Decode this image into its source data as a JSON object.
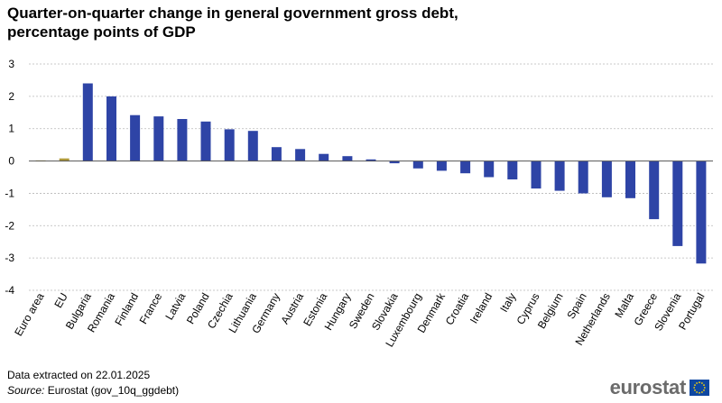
{
  "title": {
    "line1": "Quarter-on-quarter change in general government gross debt,",
    "line2": "percentage points of GDP"
  },
  "footer": {
    "extracted": "Data extracted  on 22.01.2025",
    "source_label": "Source:",
    "source_text": " Eurostat (gov_10q_ggdebt)"
  },
  "logo": {
    "text": "eurostat",
    "icon": "eu-flag-icon"
  },
  "colors": {
    "aggregate": "#b09a3b",
    "country": "#2e44a6",
    "grid": "#b8b8b8",
    "axis": "#555555"
  },
  "chart_data": {
    "type": "bar",
    "title": "Quarter-on-quarter change in general government gross debt, percentage points of GDP",
    "xlabel": "",
    "ylabel": "",
    "ylim": [
      -4,
      3
    ],
    "yticks": [
      3,
      2,
      1,
      0,
      -1,
      -2,
      -3,
      -4
    ],
    "grid": true,
    "categories": [
      "Euro area",
      "EU",
      "Bulgaria",
      "Romania",
      "Finland",
      "France",
      "Latvia",
      "Poland",
      "Czechia",
      "Lithuania",
      "Germany",
      "Austria",
      "Estonia",
      "Hungary",
      "Sweden",
      "Slovakia",
      "Luxembourg",
      "Denmark",
      "Croatia",
      "Ireland",
      "Italy",
      "Cyprus",
      "Belgium",
      "Spain",
      "Netherlands",
      "Malta",
      "Greece",
      "Slovenia",
      "Portugal"
    ],
    "values": [
      0.02,
      0.08,
      2.4,
      2.0,
      1.42,
      1.38,
      1.3,
      1.22,
      0.98,
      0.93,
      0.43,
      0.37,
      0.22,
      0.15,
      0.05,
      -0.07,
      -0.23,
      -0.3,
      -0.38,
      -0.5,
      -0.57,
      -0.85,
      -0.92,
      -1.0,
      -1.12,
      -1.15,
      -1.8,
      -2.63,
      -3.17
    ],
    "aggregates": [
      "Euro area",
      "EU"
    ]
  }
}
